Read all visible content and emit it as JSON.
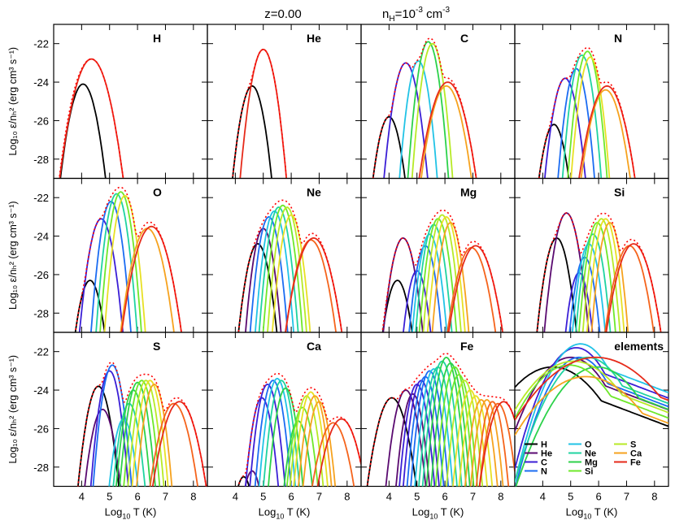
{
  "header": {
    "redshift": "z=0.00",
    "density": "n",
    "density_sub": "H",
    "density_eq": "=10",
    "density_exp": "-3",
    "density_unit": " cm",
    "density_unit_exp": "-3"
  },
  "axes": {
    "xlabel_pre": "Log",
    "xlabel_sub": "10",
    "xlabel_post": " T (K)",
    "ylabel": "Log₁₀ ε/nₕ² (erg cm³ s⁻¹)",
    "xticks": [
      4,
      5,
      6,
      7,
      8
    ],
    "yticks": [
      -22,
      -24,
      -26,
      -28
    ],
    "xlim": [
      3.0,
      8.5
    ],
    "ylim": [
      -29.0,
      -21.0
    ]
  },
  "colors": {
    "total_dotted": "#ff0000",
    "ion_palette": [
      "#000000",
      "#5a0a70",
      "#3b1fd6",
      "#1b6cf2",
      "#21c3e6",
      "#1fd3a0",
      "#2cd24a",
      "#6ee82a",
      "#b7ea26",
      "#e8e024",
      "#f6a21e",
      "#f5641c",
      "#e62a1a"
    ]
  },
  "chart_data": [
    {
      "type": "line",
      "title": "H",
      "peaks_x": [
        4.05,
        4.35
      ],
      "peak_heights": [
        -24.1,
        -22.8
      ],
      "widths": [
        0.4,
        0.5
      ],
      "total_peak": [
        4.4,
        -22.8
      ]
    },
    {
      "type": "line",
      "title": "He",
      "peaks_x": [
        4.6,
        5.0
      ],
      "peak_heights": [
        -24.2,
        -22.3
      ],
      "widths": [
        0.35,
        0.35
      ],
      "total_peak": [
        5.0,
        -22.3
      ]
    },
    {
      "type": "line",
      "title": "C",
      "peaks_x": [
        4.0,
        4.6,
        5.05,
        5.4,
        5.55,
        6.05,
        6.1
      ],
      "peak_heights": [
        -25.8,
        -23.0,
        -22.9,
        -21.9,
        -22.0,
        -24.2,
        -24.0
      ],
      "widths": [
        0.35,
        0.35,
        0.3,
        0.3,
        0.3,
        0.45,
        0.5
      ],
      "total_peak": [
        5.2,
        -21.8
      ]
    },
    {
      "type": "line",
      "title": "N",
      "peaks_x": [
        4.4,
        4.8,
        5.2,
        5.4,
        5.6,
        5.7,
        6.25,
        6.3
      ],
      "peak_heights": [
        -26.2,
        -23.8,
        -23.3,
        -22.6,
        -22.4,
        -22.7,
        -24.4,
        -24.2
      ],
      "widths": [
        0.35,
        0.35,
        0.3,
        0.3,
        0.3,
        0.3,
        0.45,
        0.5
      ],
      "total_peak": [
        5.3,
        -22.3
      ]
    },
    {
      "type": "line",
      "title": "O",
      "peaks_x": [
        4.3,
        4.7,
        5.05,
        5.25,
        5.4,
        5.55,
        6.35,
        6.5
      ],
      "peak_heights": [
        -26.3,
        -23.1,
        -22.2,
        -21.8,
        -21.7,
        -21.9,
        -23.6,
        -23.5
      ],
      "widths": [
        0.35,
        0.35,
        0.3,
        0.3,
        0.3,
        0.3,
        0.45,
        0.5
      ],
      "total_peak": [
        5.35,
        -21.6
      ]
    },
    {
      "type": "line",
      "title": "Ne",
      "peaks_x": [
        4.8,
        5.0,
        5.2,
        5.4,
        5.55,
        5.7,
        5.85,
        6.0,
        6.7,
        6.8
      ],
      "peak_heights": [
        -24.4,
        -23.6,
        -23.0,
        -22.7,
        -22.5,
        -22.4,
        -22.5,
        -22.9,
        -24.2,
        -24.1
      ],
      "widths": [
        0.35,
        0.3,
        0.3,
        0.3,
        0.3,
        0.3,
        0.3,
        0.3,
        0.45,
        0.5
      ],
      "total_peak": [
        5.6,
        -22.3
      ]
    },
    {
      "type": "line",
      "title": "Mg",
      "peaks_x": [
        4.3,
        4.5,
        5.0,
        5.3,
        5.45,
        5.6,
        5.75,
        5.9,
        6.05,
        6.2,
        6.95,
        7.1
      ],
      "peak_heights": [
        -26.3,
        -24.1,
        -25.8,
        -24.5,
        -23.9,
        -23.4,
        -23.1,
        -22.9,
        -23.0,
        -23.3,
        -24.6,
        -24.5
      ],
      "widths": [
        0.35,
        0.35,
        0.3,
        0.3,
        0.3,
        0.3,
        0.3,
        0.3,
        0.3,
        0.3,
        0.45,
        0.5
      ],
      "total_peak": [
        5.95,
        -22.8
      ]
    },
    {
      "type": "line",
      "title": "Si",
      "peaks_x": [
        4.5,
        4.85,
        5.3,
        5.5,
        5.65,
        5.8,
        5.95,
        6.1,
        6.25,
        6.4,
        7.1,
        7.25
      ],
      "peak_heights": [
        -24.1,
        -22.8,
        -25.9,
        -25.1,
        -24.4,
        -23.9,
        -23.3,
        -23.1,
        -23.1,
        -23.3,
        -24.5,
        -24.4
      ],
      "widths": [
        0.35,
        0.35,
        0.3,
        0.3,
        0.3,
        0.3,
        0.3,
        0.3,
        0.3,
        0.3,
        0.45,
        0.5
      ],
      "total_peak": [
        4.95,
        -22.7
      ]
    },
    {
      "type": "line",
      "title": "S",
      "peaks_x": [
        4.6,
        4.75,
        5.0,
        5.1,
        5.5,
        5.7,
        5.85,
        6.0,
        6.15,
        6.3,
        6.45,
        6.6,
        7.3,
        7.5
      ],
      "peak_heights": [
        -23.8,
        -25.0,
        -23.0,
        -22.7,
        -25.5,
        -24.7,
        -24.0,
        -23.6,
        -23.5,
        -23.5,
        -23.5,
        -23.7,
        -24.7,
        -24.6
      ],
      "widths": [
        0.35,
        0.35,
        0.3,
        0.3,
        0.3,
        0.3,
        0.3,
        0.3,
        0.3,
        0.3,
        0.3,
        0.3,
        0.45,
        0.5
      ],
      "total_peak": [
        5.1,
        -22.5
      ]
    },
    {
      "type": "line",
      "title": "Ca",
      "peaks_x": [
        4.3,
        4.6,
        4.95,
        5.15,
        5.35,
        5.5,
        5.65,
        5.8,
        6.25,
        6.4,
        6.55,
        6.7,
        6.85,
        7.0,
        7.5,
        7.8
      ],
      "peak_heights": [
        -28.5,
        -28.2,
        -24.4,
        -23.7,
        -23.5,
        -23.4,
        -23.5,
        -23.9,
        -25.6,
        -24.9,
        -24.3,
        -24.1,
        -24.3,
        -24.6,
        -25.7,
        -25.5
      ],
      "widths": [
        0.3,
        0.3,
        0.3,
        0.3,
        0.3,
        0.3,
        0.3,
        0.3,
        0.3,
        0.3,
        0.3,
        0.3,
        0.3,
        0.3,
        0.45,
        0.5
      ],
      "total_peak": [
        5.55,
        -23.3
      ]
    },
    {
      "type": "line",
      "title": "Fe",
      "peaks_x": [
        4.1,
        4.6,
        4.85,
        5.0,
        5.15,
        5.3,
        5.45,
        5.6,
        5.75,
        5.9,
        6.05,
        6.2,
        6.35,
        6.5,
        6.7,
        6.9,
        7.1,
        7.3,
        7.5,
        7.7,
        7.9,
        8.1
      ],
      "peak_heights": [
        -24.4,
        -24.0,
        -24.2,
        -23.7,
        -23.5,
        -23.3,
        -23.0,
        -22.9,
        -22.8,
        -22.5,
        -22.3,
        -22.6,
        -22.8,
        -23.2,
        -23.5,
        -24.0,
        -24.3,
        -24.5,
        -24.5,
        -24.6,
        -24.7,
        -24.6
      ],
      "widths": [
        0.45,
        0.35,
        0.3,
        0.3,
        0.3,
        0.3,
        0.3,
        0.3,
        0.3,
        0.3,
        0.3,
        0.3,
        0.3,
        0.3,
        0.3,
        0.3,
        0.3,
        0.3,
        0.3,
        0.3,
        0.35,
        0.45
      ],
      "total_peak": [
        5.9,
        -22.3
      ]
    },
    {
      "type": "line",
      "title": "elements",
      "series_names": [
        "H",
        "He",
        "C",
        "N",
        "O",
        "Ne",
        "Mg",
        "Si",
        "S",
        "Ca",
        "Fe"
      ],
      "series_colors": [
        "#000000",
        "#5a0a70",
        "#3b1fd6",
        "#1b6cf2",
        "#21c3e6",
        "#1fd3a0",
        "#2cd24a",
        "#6ee82a",
        "#b7ea26",
        "#f6a21e",
        "#e62a1a"
      ],
      "peaks_x": [
        4.35,
        5.0,
        5.2,
        5.3,
        5.35,
        5.6,
        5.95,
        4.95,
        5.1,
        5.55,
        5.9
      ],
      "peak_heights": [
        -22.8,
        -22.3,
        -21.8,
        -22.3,
        -21.6,
        -22.3,
        -22.8,
        -22.7,
        -22.5,
        -23.3,
        -22.3
      ],
      "widths": [
        0.9,
        0.7,
        0.6,
        0.6,
        0.6,
        0.7,
        0.8,
        0.8,
        0.9,
        1.0,
        1.1
      ]
    }
  ]
}
